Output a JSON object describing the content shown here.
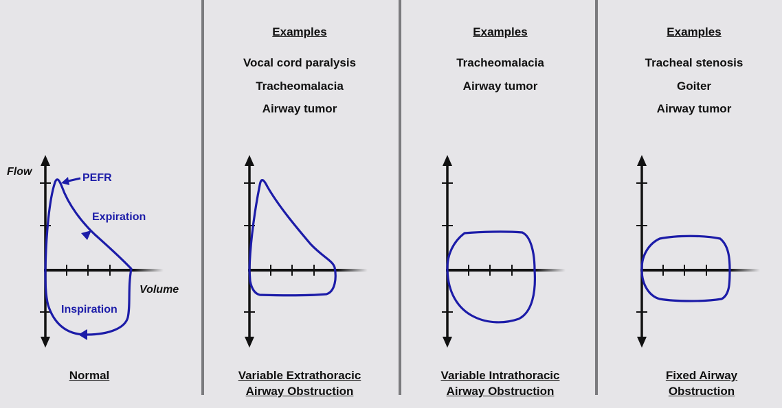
{
  "colors": {
    "background": "#e6e5e8",
    "curve": "#1c1ca8",
    "axis": "#111111",
    "divider": "#7b7b7e"
  },
  "normal": {
    "axis_flow": "Flow",
    "axis_volume": "Volume",
    "pefr": "PEFR",
    "expiration": "Expiration",
    "inspiration": "Inspiration",
    "caption": [
      "Normal"
    ]
  },
  "panels": [
    {
      "examples_title": "Examples",
      "examples": [
        "Vocal cord paralysis",
        "Tracheomalacia",
        "Airway tumor"
      ],
      "caption": [
        "Variable Extrathoracic",
        "Airway Obstruction"
      ]
    },
    {
      "examples_title": "Examples",
      "examples": [
        "Tracheomalacia",
        "Airway tumor"
      ],
      "caption": [
        "Variable Intrathoracic",
        "Airway Obstruction"
      ]
    },
    {
      "examples_title": "Examples",
      "examples": [
        "Tracheal stenosis",
        "Goiter",
        "Airway tumor"
      ],
      "caption": [
        "Fixed Airway",
        "Obstruction"
      ]
    }
  ]
}
